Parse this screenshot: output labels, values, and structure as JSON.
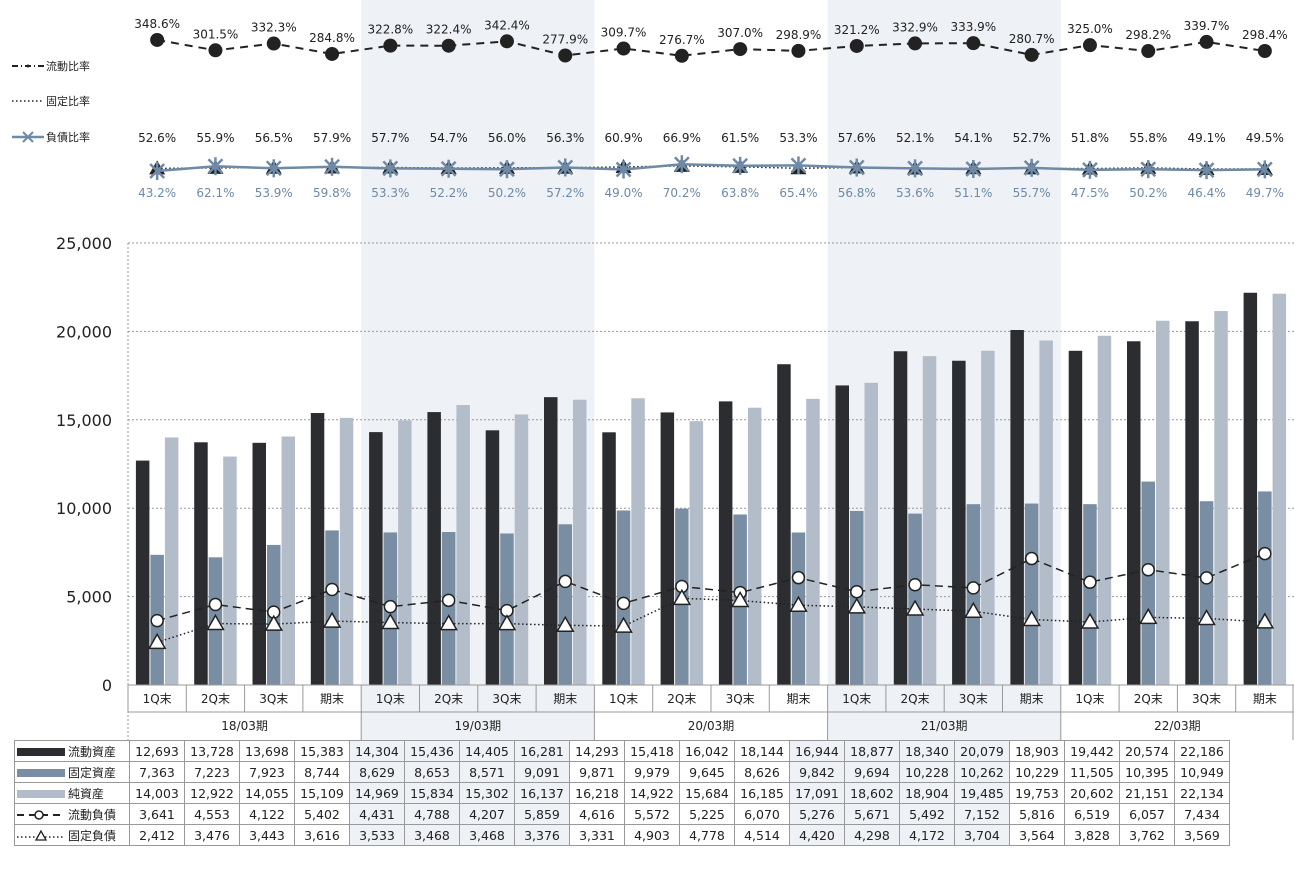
{
  "chart_data": {
    "type": "bar",
    "periods": [
      "18/03期",
      "19/03期",
      "20/03期",
      "21/03期",
      "22/03期"
    ],
    "quarters": [
      "1Q末",
      "2Q末",
      "3Q末",
      "期末"
    ],
    "y_ticks": [
      "0",
      "5,000",
      "10,000",
      "15,000",
      "20,000",
      "25,000"
    ],
    "ylim": [
      0,
      25000
    ],
    "grid": true,
    "bar_series": [
      {
        "name": "流動資産",
        "color": "#2b2d31",
        "values": [
          12693,
          13728,
          13698,
          15383,
          14304,
          15436,
          14405,
          16281,
          14293,
          15418,
          16042,
          18144,
          16944,
          18877,
          18340,
          20079,
          18903,
          19442,
          20574,
          22186
        ],
        "labels": [
          "12,693",
          "13,728",
          "13,698",
          "15,383",
          "14,304",
          "15,436",
          "14,405",
          "16,281",
          "14,293",
          "15,418",
          "16,042",
          "18,144",
          "16,944",
          "18,877",
          "18,340",
          "20,079",
          "18,903",
          "19,442",
          "20,574",
          "22,186"
        ]
      },
      {
        "name": "固定資産",
        "color": "#7a8ea3",
        "values": [
          7363,
          7223,
          7923,
          8744,
          8629,
          8653,
          8571,
          9091,
          9871,
          9979,
          9645,
          8626,
          9842,
          9694,
          10228,
          10262,
          10229,
          11505,
          10395,
          10949
        ],
        "labels": [
          "7,363",
          "7,223",
          "7,923",
          "8,744",
          "8,629",
          "8,653",
          "8,571",
          "9,091",
          "9,871",
          "9,979",
          "9,645",
          "8,626",
          "9,842",
          "9,694",
          "10,228",
          "10,262",
          "10,229",
          "11,505",
          "10,395",
          "10,949"
        ]
      },
      {
        "name": "純資産",
        "color": "#b3bdca",
        "values": [
          14003,
          12922,
          14055,
          15109,
          14969,
          15834,
          15302,
          16137,
          16218,
          14922,
          15684,
          16185,
          17091,
          18602,
          18904,
          19485,
          19753,
          20602,
          21151,
          22134
        ],
        "labels": [
          "14,003",
          "12,922",
          "14,055",
          "15,109",
          "14,969",
          "15,834",
          "15,302",
          "16,137",
          "16,218",
          "14,922",
          "15,684",
          "16,185",
          "17,091",
          "18,602",
          "18,904",
          "19,485",
          "19,753",
          "20,602",
          "21,151",
          "22,134"
        ]
      }
    ],
    "line_series": [
      {
        "name": "流動負債",
        "values": [
          3641,
          4553,
          4122,
          5402,
          4431,
          4788,
          4207,
          5859,
          4616,
          5572,
          5225,
          6070,
          5276,
          5671,
          5492,
          7152,
          5816,
          6519,
          6057,
          7434
        ],
        "labels": [
          "3,641",
          "4,553",
          "4,122",
          "5,402",
          "4,431",
          "4,788",
          "4,207",
          "5,859",
          "4,616",
          "5,572",
          "5,225",
          "6,070",
          "5,276",
          "5,671",
          "5,492",
          "7,152",
          "5,816",
          "6,519",
          "6,057",
          "7,434"
        ]
      },
      {
        "name": "固定負債",
        "values": [
          2412,
          3476,
          3443,
          3616,
          3533,
          3468,
          3468,
          3376,
          3331,
          4903,
          4778,
          4514,
          4420,
          4298,
          4172,
          3704,
          3564,
          3828,
          3762,
          3569
        ],
        "labels": [
          "2,412",
          "3,476",
          "3,443",
          "3,616",
          "3,533",
          "3,468",
          "3,468",
          "3,376",
          "3,331",
          "4,903",
          "4,778",
          "4,514",
          "4,420",
          "4,298",
          "4,172",
          "3,704",
          "3,564",
          "3,828",
          "3,762",
          "3,569"
        ]
      }
    ],
    "ratio_series": [
      {
        "name": "流動比率",
        "values": [
          348.6,
          301.5,
          332.3,
          284.8,
          322.8,
          322.4,
          342.4,
          277.9,
          309.7,
          276.7,
          307.0,
          298.9,
          321.2,
          332.9,
          333.9,
          280.7,
          325.0,
          298.2,
          339.7,
          298.4
        ],
        "labels": [
          "348.6%",
          "301.5%",
          "332.3%",
          "284.8%",
          "322.8%",
          "322.4%",
          "342.4%",
          "277.9%",
          "309.7%",
          "276.7%",
          "307.0%",
          "298.9%",
          "321.2%",
          "332.9%",
          "333.9%",
          "280.7%",
          "325.0%",
          "298.2%",
          "339.7%",
          "298.4%"
        ]
      },
      {
        "name": "固定比率",
        "values": [
          52.6,
          55.9,
          56.5,
          57.9,
          57.7,
          54.7,
          56.0,
          56.3,
          60.9,
          66.9,
          61.5,
          53.3,
          57.6,
          52.1,
          54.1,
          52.7,
          51.8,
          55.8,
          49.1,
          49.5
        ],
        "labels": [
          "52.6%",
          "55.9%",
          "56.5%",
          "57.9%",
          "57.7%",
          "54.7%",
          "56.0%",
          "56.3%",
          "60.9%",
          "66.9%",
          "61.5%",
          "53.3%",
          "57.6%",
          "52.1%",
          "54.1%",
          "52.7%",
          "51.8%",
          "55.8%",
          "49.1%",
          "49.5%"
        ]
      },
      {
        "name": "負債比率",
        "color": "#6e8aa6",
        "values": [
          43.2,
          62.1,
          53.9,
          59.8,
          53.3,
          52.2,
          50.2,
          57.2,
          49.0,
          70.2,
          63.8,
          65.4,
          56.8,
          53.6,
          51.1,
          55.7,
          47.5,
          50.2,
          46.4,
          49.7
        ],
        "labels": [
          "43.2%",
          "62.1%",
          "53.9%",
          "59.8%",
          "53.3%",
          "52.2%",
          "50.2%",
          "57.2%",
          "49.0%",
          "70.2%",
          "63.8%",
          "65.4%",
          "56.8%",
          "53.6%",
          "51.1%",
          "55.7%",
          "47.5%",
          "50.2%",
          "46.4%",
          "49.7%"
        ]
      }
    ],
    "shading_color": "#eef1f5"
  }
}
